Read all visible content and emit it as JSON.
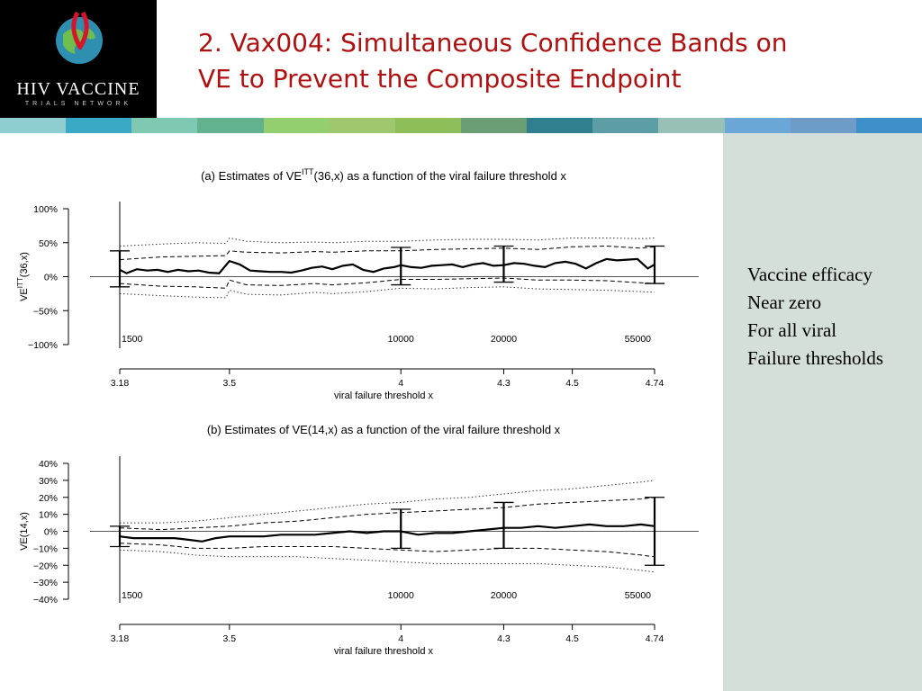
{
  "header": {
    "logo_text": "HIV VACCINE",
    "logo_subtext": "TRIALS NETWORK",
    "title_line1": "2. Vax004: Simultaneous Confidence Bands on",
    "title_line2": "VE to Prevent the Composite Endpoint"
  },
  "stripe_colors": [
    "#8fcdd1",
    "#3aa9c6",
    "#7fc9b3",
    "#62b18f",
    "#93cf6f",
    "#9ec76e",
    "#8ebe5a",
    "#6b9e75",
    "#2f7f8f",
    "#5c9da6",
    "#98c0b6",
    "#6aa6d6",
    "#6e9cc8",
    "#3d8fc8"
  ],
  "side_panel": {
    "lines": [
      "Vaccine efficacy",
      "Near zero",
      "For all viral",
      "Failure thresholds"
    ]
  },
  "chart_data": [
    {
      "type": "line",
      "title": "(a) Estimates of VE",
      "title_sup": "ITT",
      "title_rest": "(36,x) as a function of the viral failure threshold x",
      "ylabel": "VE",
      "ylabel_sup": "ITT",
      "ylabel_rest": "(36,x)",
      "xlabel": "viral failure threshold x",
      "xlim": [
        3.18,
        4.74
      ],
      "ylim": [
        -100,
        100
      ],
      "yticks": [
        100,
        50,
        0,
        -50,
        -100
      ],
      "ytick_labels": [
        "100%",
        "50%",
        "0%",
        "−50%",
        "−100%"
      ],
      "xticks": [
        3.18,
        3.5,
        4,
        4.3,
        4.5,
        4.74
      ],
      "xtick_labels": [
        "3.18",
        "3.5",
        "4",
        "4.3",
        "4.5",
        "4.74"
      ],
      "annotations": [
        {
          "x": 3.18,
          "text": "1500"
        },
        {
          "x": 4.0,
          "text": "10000"
        },
        {
          "x": 4.3,
          "text": "20000"
        },
        {
          "x": 4.74,
          "text": "55000"
        }
      ],
      "series": [
        {
          "style": "solid",
          "x": [
            3.18,
            3.2,
            3.23,
            3.26,
            3.29,
            3.32,
            3.35,
            3.38,
            3.41,
            3.44,
            3.47,
            3.5,
            3.53,
            3.56,
            3.59,
            3.62,
            3.65,
            3.68,
            3.71,
            3.74,
            3.77,
            3.8,
            3.83,
            3.86,
            3.89,
            3.92,
            3.95,
            3.98,
            4.0,
            4.03,
            4.06,
            4.09,
            4.12,
            4.15,
            4.18,
            4.21,
            4.24,
            4.27,
            4.3,
            4.33,
            4.36,
            4.39,
            4.42,
            4.45,
            4.48,
            4.51,
            4.54,
            4.57,
            4.6,
            4.63,
            4.66,
            4.69,
            4.72,
            4.74
          ],
          "y": [
            10,
            5,
            11,
            9,
            10,
            7,
            10,
            8,
            9,
            6,
            5,
            23,
            18,
            9,
            8,
            7,
            7,
            6,
            9,
            13,
            15,
            11,
            16,
            18,
            10,
            7,
            12,
            14,
            17,
            14,
            13,
            16,
            17,
            18,
            14,
            18,
            20,
            16,
            17,
            20,
            19,
            16,
            14,
            20,
            22,
            19,
            12,
            20,
            26,
            24,
            25,
            26,
            12,
            18
          ]
        },
        {
          "style": "dashed",
          "x": [
            3.18,
            3.3,
            3.4,
            3.49,
            3.5,
            3.55,
            3.65,
            3.75,
            3.8,
            3.9,
            4.0,
            4.1,
            4.2,
            4.3,
            4.4,
            4.5,
            4.6,
            4.7,
            4.74
          ],
          "y": [
            25,
            29,
            30,
            31,
            38,
            36,
            35,
            37,
            36,
            38,
            38,
            40,
            41,
            42,
            40,
            44,
            45,
            42,
            44
          ]
        },
        {
          "style": "dashed",
          "x": [
            3.18,
            3.3,
            3.4,
            3.49,
            3.5,
            3.55,
            3.65,
            3.75,
            3.8,
            3.9,
            4.0,
            4.1,
            4.2,
            4.3,
            4.4,
            4.5,
            4.6,
            4.7,
            4.74
          ],
          "y": [
            -10,
            -14,
            -15,
            -17,
            -5,
            -12,
            -13,
            -10,
            -12,
            -9,
            -4,
            -4,
            -3,
            -2,
            -5,
            -5,
            -6,
            -9,
            -10
          ]
        },
        {
          "style": "dotted",
          "x": [
            3.18,
            3.3,
            3.4,
            3.49,
            3.5,
            3.55,
            3.65,
            3.75,
            3.8,
            3.9,
            4.0,
            4.1,
            4.2,
            4.3,
            4.4,
            4.5,
            4.6,
            4.7,
            4.74
          ],
          "y": [
            45,
            48,
            50,
            49,
            57,
            52,
            50,
            51,
            50,
            52,
            52,
            54,
            55,
            55,
            54,
            57,
            57,
            56,
            57
          ]
        },
        {
          "style": "dotted",
          "x": [
            3.18,
            3.3,
            3.4,
            3.49,
            3.5,
            3.55,
            3.65,
            3.75,
            3.8,
            3.9,
            4.0,
            4.1,
            4.2,
            4.3,
            4.4,
            4.5,
            4.6,
            4.7,
            4.74
          ],
          "y": [
            -25,
            -28,
            -30,
            -31,
            -20,
            -26,
            -27,
            -23,
            -25,
            -22,
            -17,
            -18,
            -16,
            -15,
            -18,
            -19,
            -20,
            -22,
            -23
          ]
        }
      ],
      "error_bars": [
        {
          "x": 3.18,
          "low": -15,
          "high": 38
        },
        {
          "x": 4.0,
          "low": -12,
          "high": 43
        },
        {
          "x": 4.3,
          "low": -8,
          "high": 45
        },
        {
          "x": 4.74,
          "low": -10,
          "high": 45
        }
      ]
    },
    {
      "type": "line",
      "title": "(b) Estimates of VE(14,x) as a function of the viral failure threshold x",
      "ylabel": "VE(14,x)",
      "xlabel": "viral failure threshold x",
      "xlim": [
        3.18,
        4.74
      ],
      "ylim": [
        -40,
        40
      ],
      "yticks": [
        40,
        30,
        20,
        10,
        0,
        -10,
        -20,
        -30,
        -40
      ],
      "ytick_labels": [
        "40%",
        "30%",
        "20%",
        "10%",
        "0%",
        "−10%",
        "−20%",
        "−30%",
        "−40%"
      ],
      "xticks": [
        3.18,
        3.5,
        4,
        4.3,
        4.5,
        4.74
      ],
      "xtick_labels": [
        "3.18",
        "3.5",
        "4",
        "4.3",
        "4.5",
        "4.74"
      ],
      "annotations": [
        {
          "x": 3.18,
          "text": "1500"
        },
        {
          "x": 4.0,
          "text": "10000"
        },
        {
          "x": 4.3,
          "text": "20000"
        },
        {
          "x": 4.74,
          "text": "55000"
        }
      ],
      "series": [
        {
          "style": "solid",
          "x": [
            3.18,
            3.22,
            3.26,
            3.3,
            3.34,
            3.38,
            3.42,
            3.46,
            3.5,
            3.55,
            3.6,
            3.65,
            3.7,
            3.75,
            3.8,
            3.85,
            3.9,
            3.95,
            4.0,
            4.05,
            4.1,
            4.15,
            4.2,
            4.25,
            4.3,
            4.35,
            4.4,
            4.45,
            4.5,
            4.55,
            4.6,
            4.65,
            4.7,
            4.74
          ],
          "y": [
            -3,
            -4,
            -4,
            -4,
            -4,
            -5,
            -6,
            -4,
            -3,
            -3,
            -3,
            -2,
            -2,
            -2,
            -1,
            0,
            -1,
            0,
            0,
            -2,
            -1,
            -1,
            0,
            1,
            2,
            2,
            3,
            2,
            3,
            4,
            3,
            3,
            4,
            3
          ]
        },
        {
          "style": "dashed",
          "x": [
            3.18,
            3.3,
            3.4,
            3.5,
            3.6,
            3.7,
            3.8,
            3.9,
            4.0,
            4.1,
            4.2,
            4.3,
            4.4,
            4.5,
            4.6,
            4.7,
            4.74
          ],
          "y": [
            2,
            1,
            2,
            3,
            5,
            6,
            8,
            10,
            11,
            12,
            13,
            14,
            16,
            17,
            18,
            19,
            20
          ]
        },
        {
          "style": "dashed",
          "x": [
            3.18,
            3.3,
            3.4,
            3.5,
            3.6,
            3.7,
            3.8,
            3.9,
            4.0,
            4.1,
            4.2,
            4.3,
            4.4,
            4.5,
            4.6,
            4.7,
            4.74
          ],
          "y": [
            -7,
            -8,
            -10,
            -10,
            -9,
            -9,
            -9,
            -10,
            -11,
            -12,
            -11,
            -10,
            -10,
            -11,
            -12,
            -14,
            -15
          ]
        },
        {
          "style": "dotted",
          "x": [
            3.18,
            3.3,
            3.4,
            3.5,
            3.6,
            3.7,
            3.8,
            3.9,
            4.0,
            4.1,
            4.2,
            4.3,
            4.4,
            4.5,
            4.6,
            4.7,
            4.74
          ],
          "y": [
            5,
            5,
            6,
            8,
            10,
            12,
            14,
            16,
            17,
            19,
            20,
            22,
            24,
            25,
            27,
            29,
            30
          ]
        },
        {
          "style": "dotted",
          "x": [
            3.18,
            3.3,
            3.4,
            3.5,
            3.6,
            3.7,
            3.8,
            3.9,
            4.0,
            4.1,
            4.2,
            4.3,
            4.4,
            4.5,
            4.6,
            4.7,
            4.74
          ],
          "y": [
            -11,
            -12,
            -14,
            -15,
            -15,
            -15,
            -16,
            -17,
            -18,
            -19,
            -19,
            -19,
            -19,
            -20,
            -21,
            -23,
            -24
          ]
        }
      ],
      "error_bars": [
        {
          "x": 3.18,
          "low": -9,
          "high": 3
        },
        {
          "x": 4.0,
          "low": -10,
          "high": 13
        },
        {
          "x": 4.3,
          "low": -10,
          "high": 17
        },
        {
          "x": 4.74,
          "low": -20,
          "high": 20
        }
      ]
    }
  ]
}
